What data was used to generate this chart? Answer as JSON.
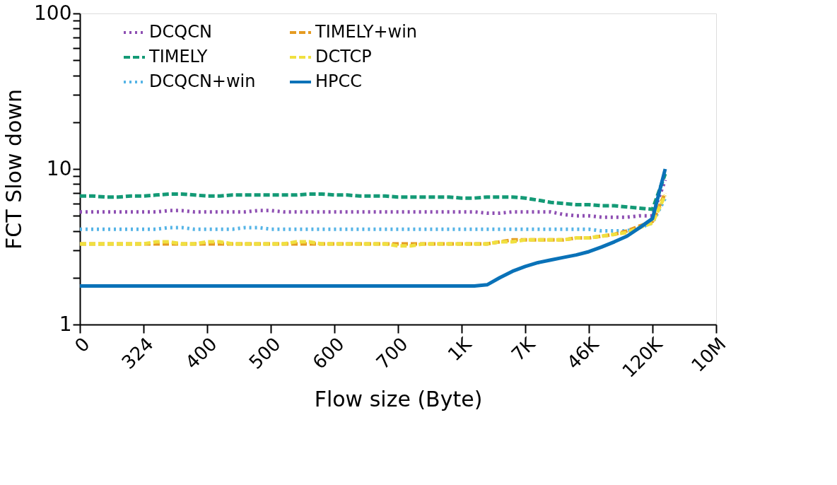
{
  "chart_data": {
    "type": "line",
    "xlabel": "Flow size (Byte)",
    "ylabel": "FCT Slow down",
    "categories": [
      "0",
      null,
      null,
      null,
      null,
      "324",
      null,
      null,
      null,
      null,
      "400",
      null,
      null,
      null,
      null,
      "500",
      null,
      null,
      null,
      null,
      "600",
      null,
      null,
      null,
      null,
      "700",
      null,
      null,
      null,
      null,
      "1K",
      null,
      null,
      null,
      null,
      "7K",
      null,
      null,
      null,
      null,
      "46K",
      null,
      null,
      null,
      null,
      "120K",
      null,
      null,
      null,
      null,
      "10M"
    ],
    "ylim": [
      1,
      100
    ],
    "log": true,
    "yticks": [
      1,
      {
        "value": 2,
        "label": null
      },
      {
        "value": 3,
        "label": null
      },
      {
        "value": 4,
        "label": null
      },
      {
        "value": 5,
        "label": null
      },
      {
        "value": 6,
        "label": null
      },
      {
        "value": 7,
        "label": null
      },
      {
        "value": 8,
        "label": null
      },
      {
        "value": 9,
        "label": null
      },
      10,
      {
        "value": 20,
        "label": null
      },
      {
        "value": 30,
        "label": null
      },
      {
        "value": 40,
        "label": null
      },
      {
        "value": 50,
        "label": null
      },
      {
        "value": 60,
        "label": null
      },
      {
        "value": 70,
        "label": null
      },
      {
        "value": 80,
        "label": null
      },
      {
        "value": 90,
        "label": null
      },
      100
    ],
    "grid": false,
    "legend": "top",
    "marker": "none",
    "series": [
      {
        "name": "DCQCN",
        "color": "#8e4fb3",
        "line_style": "dotted",
        "values": [
          5.3,
          5.3,
          5.3,
          5.3,
          5.3,
          5.3,
          5.3,
          5.4,
          5.4,
          5.3,
          5.3,
          5.3,
          5.3,
          5.3,
          5.4,
          5.4,
          5.3,
          5.3,
          5.3,
          5.3,
          5.3,
          5.3,
          5.3,
          5.3,
          5.3,
          5.3,
          5.3,
          5.3,
          5.3,
          5.3,
          5.3,
          5.3,
          5.2,
          5.2,
          5.3,
          5.3,
          5.3,
          5.3,
          5.1,
          5.0,
          5.0,
          4.9,
          4.9,
          4.9,
          5.0,
          5.0,
          8.5,
          null,
          null,
          null,
          null
        ]
      },
      {
        "name": "TIMELY",
        "color": "#149a76",
        "line_style": "dashed",
        "values": [
          6.7,
          6.7,
          6.6,
          6.6,
          6.7,
          6.7,
          6.8,
          6.9,
          6.9,
          6.8,
          6.7,
          6.7,
          6.8,
          6.8,
          6.8,
          6.8,
          6.8,
          6.8,
          6.9,
          6.9,
          6.8,
          6.8,
          6.7,
          6.7,
          6.7,
          6.6,
          6.6,
          6.6,
          6.6,
          6.6,
          6.5,
          6.5,
          6.6,
          6.6,
          6.6,
          6.5,
          6.3,
          6.1,
          6.0,
          5.9,
          5.9,
          5.8,
          5.8,
          5.7,
          5.6,
          5.5,
          9.3,
          null,
          null,
          null,
          null
        ]
      },
      {
        "name": "DCQCN+win",
        "color": "#55b4e6",
        "line_style": "dotted",
        "values": [
          4.1,
          4.1,
          4.1,
          4.1,
          4.1,
          4.1,
          4.1,
          4.2,
          4.2,
          4.1,
          4.1,
          4.1,
          4.1,
          4.2,
          4.2,
          4.1,
          4.1,
          4.1,
          4.1,
          4.1,
          4.1,
          4.1,
          4.1,
          4.1,
          4.1,
          4.1,
          4.1,
          4.1,
          4.1,
          4.1,
          4.1,
          4.1,
          4.1,
          4.1,
          4.1,
          4.1,
          4.1,
          4.1,
          4.1,
          4.1,
          4.1,
          4.0,
          4.0,
          4.0,
          4.2,
          4.5,
          6.5,
          null,
          null,
          null,
          null
        ]
      },
      {
        "name": "TIMELY+win",
        "color": "#e59b22",
        "line_style": "dashed",
        "values": [
          3.3,
          3.3,
          3.3,
          3.3,
          3.3,
          3.3,
          3.3,
          3.3,
          3.3,
          3.3,
          3.3,
          3.3,
          3.3,
          3.3,
          3.3,
          3.3,
          3.3,
          3.3,
          3.3,
          3.3,
          3.3,
          3.3,
          3.3,
          3.3,
          3.3,
          3.3,
          3.3,
          3.3,
          3.3,
          3.3,
          3.3,
          3.3,
          3.3,
          3.4,
          3.5,
          3.5,
          3.5,
          3.5,
          3.5,
          3.6,
          3.6,
          3.7,
          3.8,
          4.0,
          4.3,
          4.6,
          7.0,
          null,
          null,
          null,
          null
        ]
      },
      {
        "name": "DCTCP",
        "color": "#f0e040",
        "line_style": "dashed",
        "values": [
          3.3,
          3.3,
          3.3,
          3.3,
          3.3,
          3.3,
          3.4,
          3.4,
          3.3,
          3.3,
          3.4,
          3.4,
          3.3,
          3.3,
          3.3,
          3.3,
          3.3,
          3.4,
          3.4,
          3.3,
          3.3,
          3.3,
          3.3,
          3.3,
          3.3,
          3.2,
          3.2,
          3.3,
          3.3,
          3.3,
          3.3,
          3.3,
          3.3,
          3.4,
          3.4,
          3.5,
          3.5,
          3.5,
          3.5,
          3.6,
          3.6,
          3.7,
          3.8,
          3.9,
          4.2,
          4.5,
          6.8,
          null,
          null,
          null,
          null
        ]
      },
      {
        "name": "HPCC",
        "color": "#0a72b8",
        "line_style": "solid",
        "values": [
          1.77,
          1.77,
          1.77,
          1.77,
          1.77,
          1.77,
          1.77,
          1.77,
          1.77,
          1.77,
          1.77,
          1.77,
          1.77,
          1.77,
          1.77,
          1.77,
          1.77,
          1.77,
          1.77,
          1.77,
          1.77,
          1.77,
          1.77,
          1.77,
          1.77,
          1.77,
          1.77,
          1.77,
          1.77,
          1.77,
          1.77,
          1.77,
          1.8,
          2.0,
          2.2,
          2.36,
          2.5,
          2.6,
          2.7,
          2.8,
          2.94,
          3.15,
          3.4,
          3.7,
          4.2,
          4.8,
          10,
          null,
          null,
          null,
          null
        ]
      }
    ]
  }
}
